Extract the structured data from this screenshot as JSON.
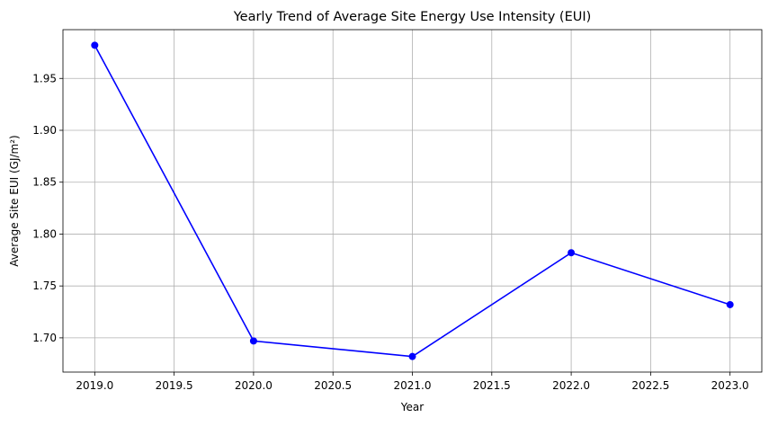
{
  "chart_data": {
    "type": "line",
    "title": "Yearly Trend of Average Site Energy Use Intensity (EUI)",
    "xlabel": "Year",
    "ylabel": "Average Site EUI (GJ/m²)",
    "x": [
      2019,
      2020,
      2021,
      2022,
      2023
    ],
    "series": [
      {
        "values": [
          1.982,
          1.697,
          1.682,
          1.782,
          1.732
        ]
      }
    ],
    "xlim": [
      2018.8,
      2023.2
    ],
    "ylim": [
      1.667,
      1.997
    ],
    "xticks": [
      2019.0,
      2019.5,
      2020.0,
      2020.5,
      2021.0,
      2021.5,
      2022.0,
      2022.5,
      2023.0
    ],
    "xtick_labels": [
      "2019.0",
      "2019.5",
      "2020.0",
      "2020.5",
      "2021.0",
      "2021.5",
      "2022.0",
      "2022.5",
      "2023.0"
    ],
    "yticks": [
      1.7,
      1.75,
      1.8,
      1.85,
      1.9,
      1.95
    ],
    "ytick_labels": [
      "1.70",
      "1.75",
      "1.80",
      "1.85",
      "1.90",
      "1.95"
    ],
    "grid": true,
    "line_color": "#0000ff",
    "marker": "circle",
    "grid_color": "#b0b0b0",
    "axes_color": "#000000"
  }
}
